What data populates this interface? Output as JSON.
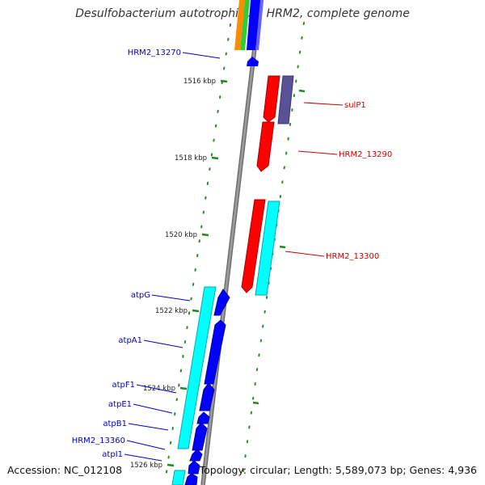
{
  "title": "Desulfobacterium autotrophicum HRM2, complete genome",
  "footer": {
    "accession": "Accession: NC_012108",
    "topology": "Topology: circular; Length: 5,589,073 bp; Genes: 4,936"
  },
  "colors": {
    "backbone": "#888888",
    "tick": "#228822",
    "tick_label": "#222222",
    "forward_label": "#0000cc",
    "reverse_label": "#cc0000",
    "gene_blue": "#0000ff",
    "gene_cyan": "#00ffff",
    "gene_red": "#ff0000",
    "gene_purple": "#55508f",
    "gene_orange": "#ff8c00",
    "gene_green": "#33cc33",
    "gene_lightblue": "#aaaaff"
  },
  "ticks": [
    {
      "label": "1516 kbp"
    },
    {
      "label": "1518 kbp"
    },
    {
      "label": "1520 kbp"
    },
    {
      "label": "1522 kbp"
    },
    {
      "label": "1524 kbp"
    },
    {
      "label": "1526 kbp"
    }
  ],
  "labels": [
    {
      "id": "HRM2_13270",
      "text": "HRM2_13270",
      "side": "left"
    },
    {
      "id": "sulP1",
      "text": "sulP1",
      "side": "right"
    },
    {
      "id": "HRM2_13290",
      "text": "HRM2_13290",
      "side": "right"
    },
    {
      "id": "HRM2_13300",
      "text": "HRM2_13300",
      "side": "right"
    },
    {
      "id": "atpG",
      "text": "atpG",
      "side": "left"
    },
    {
      "id": "atpA1",
      "text": "atpA1",
      "side": "left"
    },
    {
      "id": "atpF1",
      "text": "atpF1",
      "side": "left"
    },
    {
      "id": "atpE1",
      "text": "atpE1",
      "side": "left"
    },
    {
      "id": "atpB1",
      "text": "atpB1",
      "side": "left"
    },
    {
      "id": "HRM2_13360",
      "text": "HRM2_13360",
      "side": "left"
    },
    {
      "id": "atpI1",
      "text": "atpI1",
      "side": "left"
    }
  ]
}
